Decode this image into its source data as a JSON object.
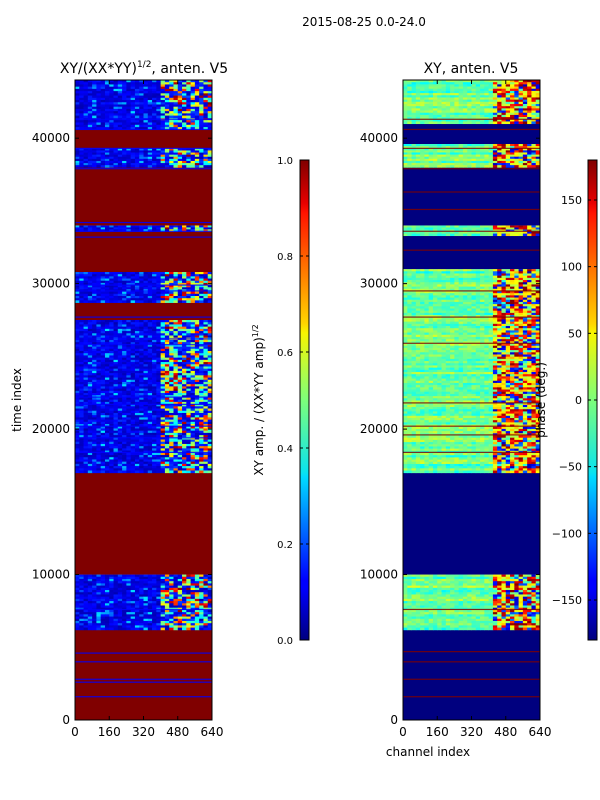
{
  "suptitle": "2015-08-25 0.0-24.0",
  "colors": {
    "saturated": "#800000",
    "empty": "#00007f",
    "frame": "#000000",
    "background": "#ffffff"
  },
  "chart_data": [
    {
      "type": "heatmap",
      "title": "XY/(XX*YY)",
      "title_exponent": "1/2",
      "title_suffix": ", anten. V5",
      "xlabel": "",
      "ylabel": "time index",
      "xlim": [
        0,
        640
      ],
      "ylim": [
        0,
        44000
      ],
      "xticks": [
        0,
        160,
        320,
        480,
        640
      ],
      "yticks": [
        0,
        10000,
        20000,
        30000,
        40000
      ],
      "colorbar": {
        "label": "XY amp. / (XX*YY amp)",
        "label_exponent": "1/2",
        "range": [
          0.0,
          1.0
        ],
        "ticks": [
          "0.0",
          "0.2",
          "0.4",
          "0.6",
          "0.8",
          "1.0"
        ],
        "colormap": "jet"
      },
      "bands": [
        {
          "t0": 0,
          "t1": 6200,
          "kind": "saturated"
        },
        {
          "t0": 6200,
          "t1": 10000,
          "kind": "fringe"
        },
        {
          "t0": 10000,
          "t1": 17000,
          "kind": "saturated"
        },
        {
          "t0": 17000,
          "t1": 27500,
          "kind": "fringe"
        },
        {
          "t0": 27500,
          "t1": 28700,
          "kind": "saturated"
        },
        {
          "t0": 28700,
          "t1": 30800,
          "kind": "fringe"
        },
        {
          "t0": 30800,
          "t1": 33600,
          "kind": "saturated"
        },
        {
          "t0": 33600,
          "t1": 34000,
          "kind": "fringe"
        },
        {
          "t0": 34000,
          "t1": 38000,
          "kind": "saturated"
        },
        {
          "t0": 38000,
          "t1": 39300,
          "kind": "fringe"
        },
        {
          "t0": 39300,
          "t1": 40600,
          "kind": "saturated"
        },
        {
          "t0": 40600,
          "t1": 41400,
          "kind": "fringe"
        },
        {
          "t0": 41400,
          "t1": 44000,
          "kind": "fringe"
        }
      ],
      "line_times": [
        1600,
        2600,
        2800,
        4000,
        4600,
        7600,
        18400,
        19400,
        20200,
        21700,
        22200,
        25800,
        26200,
        27700,
        29500,
        29900,
        33200,
        33600,
        34200,
        37900,
        39300,
        40600,
        41300
      ]
    },
    {
      "type": "heatmap",
      "title": "XY, anten. V5",
      "xlabel": "channel index",
      "ylabel": "",
      "xlim": [
        0,
        640
      ],
      "ylim": [
        0,
        44000
      ],
      "xticks": [
        0,
        160,
        320,
        480,
        640
      ],
      "yticks": [
        0,
        10000,
        20000,
        30000,
        40000
      ],
      "colorbar": {
        "label": "phase (deg.)",
        "range": [
          -180,
          180
        ],
        "ticks": [
          "150",
          "100",
          "50",
          "0",
          "−50",
          "−100",
          "−150"
        ],
        "tick_values": [
          150,
          100,
          50,
          0,
          -50,
          -100,
          -150
        ],
        "colormap": "jet"
      },
      "bands": [
        {
          "t0": 0,
          "t1": 6200,
          "kind": "empty"
        },
        {
          "t0": 6200,
          "t1": 10000,
          "kind": "phase"
        },
        {
          "t0": 10000,
          "t1": 17000,
          "kind": "empty"
        },
        {
          "t0": 17000,
          "t1": 31000,
          "kind": "phase"
        },
        {
          "t0": 31000,
          "t1": 33300,
          "kind": "empty"
        },
        {
          "t0": 33300,
          "t1": 34000,
          "kind": "phase"
        },
        {
          "t0": 34000,
          "t1": 38000,
          "kind": "empty"
        },
        {
          "t0": 38000,
          "t1": 39600,
          "kind": "phase"
        },
        {
          "t0": 39600,
          "t1": 41000,
          "kind": "empty"
        },
        {
          "t0": 41000,
          "t1": 44000,
          "kind": "phase"
        }
      ],
      "line_times": [
        1600,
        2800,
        4000,
        4700,
        7600,
        18400,
        19600,
        20200,
        21800,
        25900,
        27700,
        29500,
        32300,
        33600,
        35100,
        36300,
        37900,
        39300,
        40600,
        41300
      ]
    }
  ]
}
